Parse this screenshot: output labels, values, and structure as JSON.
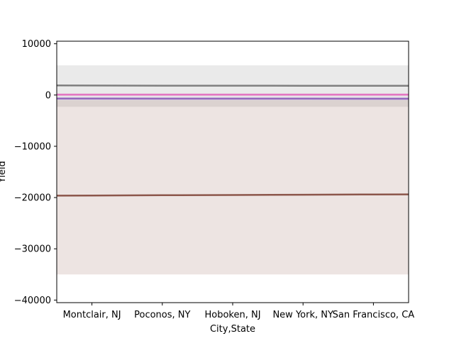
{
  "chart_data": {
    "type": "line",
    "title": "",
    "xlabel": "City,State",
    "ylabel": "Yield",
    "categories": [
      "Montclair, NJ",
      "Poconos, NY",
      "Hoboken, NJ",
      "New York, NY",
      "San Francisco, CA"
    ],
    "xlim": [
      -0.5,
      4.5
    ],
    "ylim": [
      -40500,
      10500
    ],
    "yticks": [
      10000,
      0,
      -10000,
      -20000,
      -30000,
      -40000
    ],
    "ytick_labels": [
      "10000",
      "0",
      "−10000",
      "−20000",
      "−30000",
      "−40000"
    ],
    "grid": false,
    "legend": "none",
    "series": [
      {
        "color": "#7f7f7f",
        "values": [
          1850,
          1830,
          1820,
          1810,
          1800
        ],
        "band": [
          -2300,
          5800
        ]
      },
      {
        "color": "#e377c2",
        "values": [
          80,
          75,
          70,
          65,
          60
        ],
        "band": [
          -200,
          350
        ]
      },
      {
        "color": "#9467bd",
        "values": [
          -700,
          -705,
          -710,
          -715,
          -720
        ],
        "band": [
          -1000,
          -400
        ]
      },
      {
        "color": "#8c564b",
        "values": [
          -19600,
          -19550,
          -19500,
          -19450,
          -19400
        ],
        "band": [
          -35000,
          -1000
        ]
      }
    ]
  }
}
